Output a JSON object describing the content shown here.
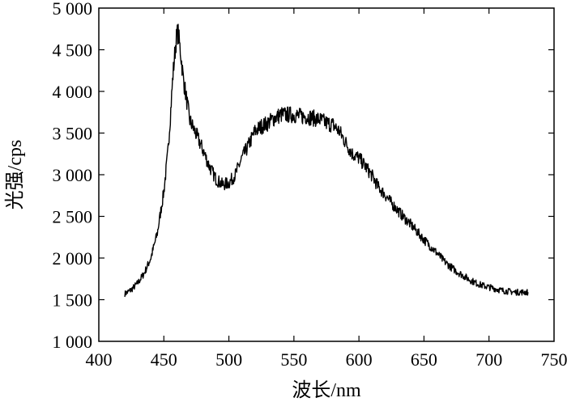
{
  "chart_data": {
    "type": "line",
    "title": "",
    "xlabel": "波长/nm",
    "ylabel": "光强/cps",
    "xlim": [
      400,
      750
    ],
    "ylim": [
      1000,
      5000
    ],
    "xticks": [
      400,
      450,
      500,
      550,
      600,
      650,
      700,
      750
    ],
    "yticks": [
      1000,
      1500,
      2000,
      2500,
      3000,
      3500,
      4000,
      4500,
      5000
    ],
    "xtick_labels": [
      "400",
      "450",
      "500",
      "550",
      "600",
      "650",
      "700",
      "750"
    ],
    "ytick_labels": [
      "1 000",
      "1 500",
      "2 000",
      "2 500",
      "3 000",
      "3 500",
      "4 000",
      "4 500",
      "5 000"
    ],
    "grid": false,
    "legend": "none",
    "series": [
      {
        "color": "#000000",
        "x": [
          420,
          425,
          430,
          435,
          440,
          445,
          450,
          453,
          455,
          457,
          459,
          460,
          461,
          463,
          465,
          468,
          470,
          473,
          475,
          480,
          485,
          490,
          495,
          500,
          505,
          510,
          515,
          520,
          525,
          530,
          535,
          540,
          545,
          550,
          555,
          560,
          565,
          570,
          575,
          580,
          585,
          590,
          595,
          600,
          605,
          610,
          615,
          620,
          625,
          630,
          635,
          640,
          645,
          650,
          655,
          660,
          665,
          670,
          675,
          680,
          685,
          690,
          695,
          700,
          705,
          710,
          715,
          720,
          725,
          730
        ],
        "y": [
          1570,
          1620,
          1700,
          1820,
          2000,
          2300,
          2800,
          3250,
          3700,
          4200,
          4550,
          4680,
          4700,
          4450,
          4150,
          3850,
          3650,
          3550,
          3480,
          3300,
          3100,
          2950,
          2880,
          2900,
          3000,
          3200,
          3350,
          3520,
          3580,
          3620,
          3680,
          3720,
          3720,
          3720,
          3700,
          3700,
          3680,
          3660,
          3620,
          3600,
          3520,
          3380,
          3250,
          3200,
          3100,
          2990,
          2850,
          2760,
          2660,
          2570,
          2480,
          2400,
          2310,
          2220,
          2140,
          2060,
          1970,
          1900,
          1840,
          1790,
          1740,
          1700,
          1670,
          1650,
          1630,
          1610,
          1600,
          1590,
          1590,
          1590
        ]
      }
    ]
  }
}
